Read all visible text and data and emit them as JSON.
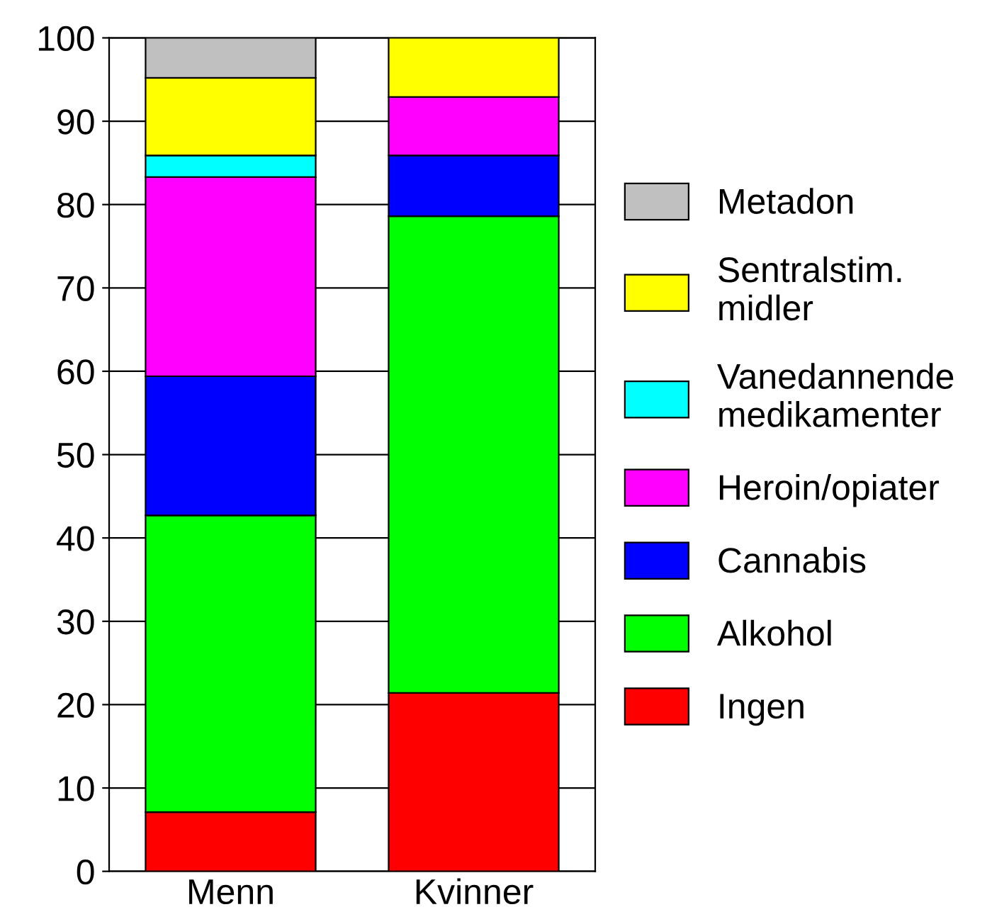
{
  "chart_data": {
    "type": "bar",
    "stacked": true,
    "categories": [
      "Menn",
      "Kvinner"
    ],
    "series": [
      {
        "name": "Ingen",
        "color": "#ff0000",
        "values": [
          7.1,
          21.4
        ]
      },
      {
        "name": "Alkohol",
        "color": "#00ff00",
        "values": [
          35.6,
          57.2
        ]
      },
      {
        "name": "Cannabis",
        "color": "#0000ff",
        "values": [
          16.7,
          7.3
        ]
      },
      {
        "name": "Heroin/opiater",
        "color": "#ff00ff",
        "values": [
          23.9,
          7.0
        ]
      },
      {
        "name": "Vanedannende\nmedikamenter",
        "color": "#00ffff",
        "values": [
          2.6,
          null
        ]
      },
      {
        "name": "Sentralstim.\nmidler",
        "color": "#ffff00",
        "values": [
          9.3,
          7.1
        ]
      },
      {
        "name": "Metadon",
        "color": "#c0c0c0",
        "values": [
          4.8,
          null
        ]
      }
    ],
    "ylim": [
      0,
      100
    ],
    "yticks": [
      0,
      10,
      20,
      30,
      40,
      50,
      60,
      70,
      80,
      90,
      100
    ],
    "grid": "y",
    "legend": "right"
  }
}
